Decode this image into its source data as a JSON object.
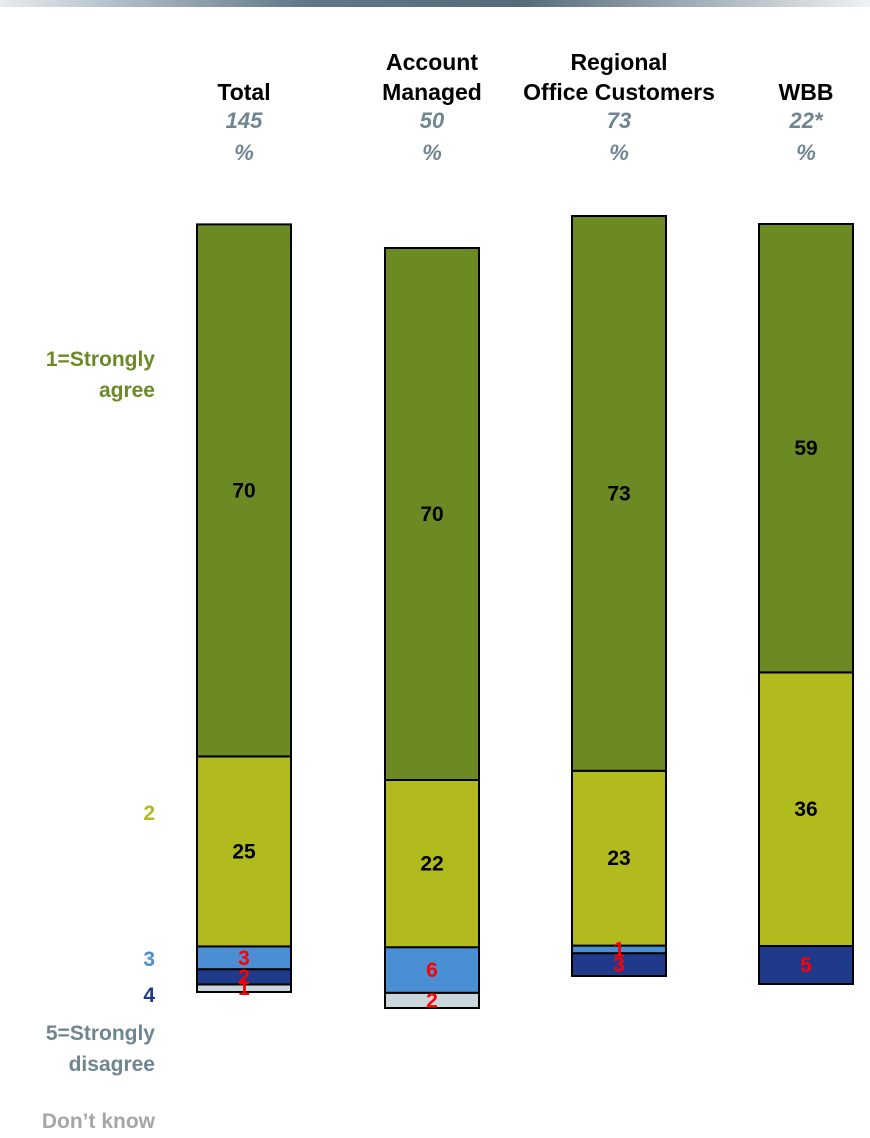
{
  "chart_data": {
    "type": "bar",
    "stacked": true,
    "categories": [
      {
        "title_lines": [
          "Total"
        ],
        "base": "145",
        "unit": "%"
      },
      {
        "title_lines": [
          "Account",
          "Managed"
        ],
        "base": "50",
        "unit": "%"
      },
      {
        "title_lines": [
          "Regional",
          "Office Customers"
        ],
        "base": "73",
        "unit": "%"
      },
      {
        "title_lines": [
          "WBB"
        ],
        "base": "22*",
        "unit": "%"
      }
    ],
    "series": [
      {
        "name": "1=Strongly agree",
        "legend_lines": [
          "1=Strongly",
          "agree"
        ],
        "color": "#6b8a24",
        "label_color": "#000000",
        "values": [
          70,
          70,
          73,
          59
        ]
      },
      {
        "name": "2",
        "legend_lines": [
          "2"
        ],
        "color": "#b2bb1e",
        "label_color": "#000000",
        "values": [
          25,
          22,
          23,
          36
        ]
      },
      {
        "name": "3",
        "legend_lines": [
          "3"
        ],
        "color": "#4a8fd3",
        "label_color": "#ff0000",
        "values": [
          3,
          6,
          1,
          0
        ]
      },
      {
        "name": "4",
        "legend_lines": [
          "4"
        ],
        "color": "#1f3a8a",
        "label_color": "#ff0000",
        "values": [
          2,
          0,
          3,
          5
        ]
      },
      {
        "name": "5=Strongly disagree",
        "legend_lines": [
          "5=Strongly",
          "disagree"
        ],
        "color": "#c9d6dc",
        "label_color": "#ff0000",
        "values": [
          1,
          2,
          0,
          0
        ]
      },
      {
        "name": "Don’t know",
        "legend_lines": [
          "Don’t know"
        ],
        "color": "#d9d9d9",
        "label_color": "#ff0000",
        "values": [
          0,
          0,
          0,
          0
        ]
      }
    ],
    "legend_colors": [
      "#6b8a24",
      "#b2bb1e",
      "#4a8fd3",
      "#1f3a8a",
      "#6f8591",
      "#a6a6a6"
    ],
    "legend_placement": "left",
    "grid": false
  }
}
